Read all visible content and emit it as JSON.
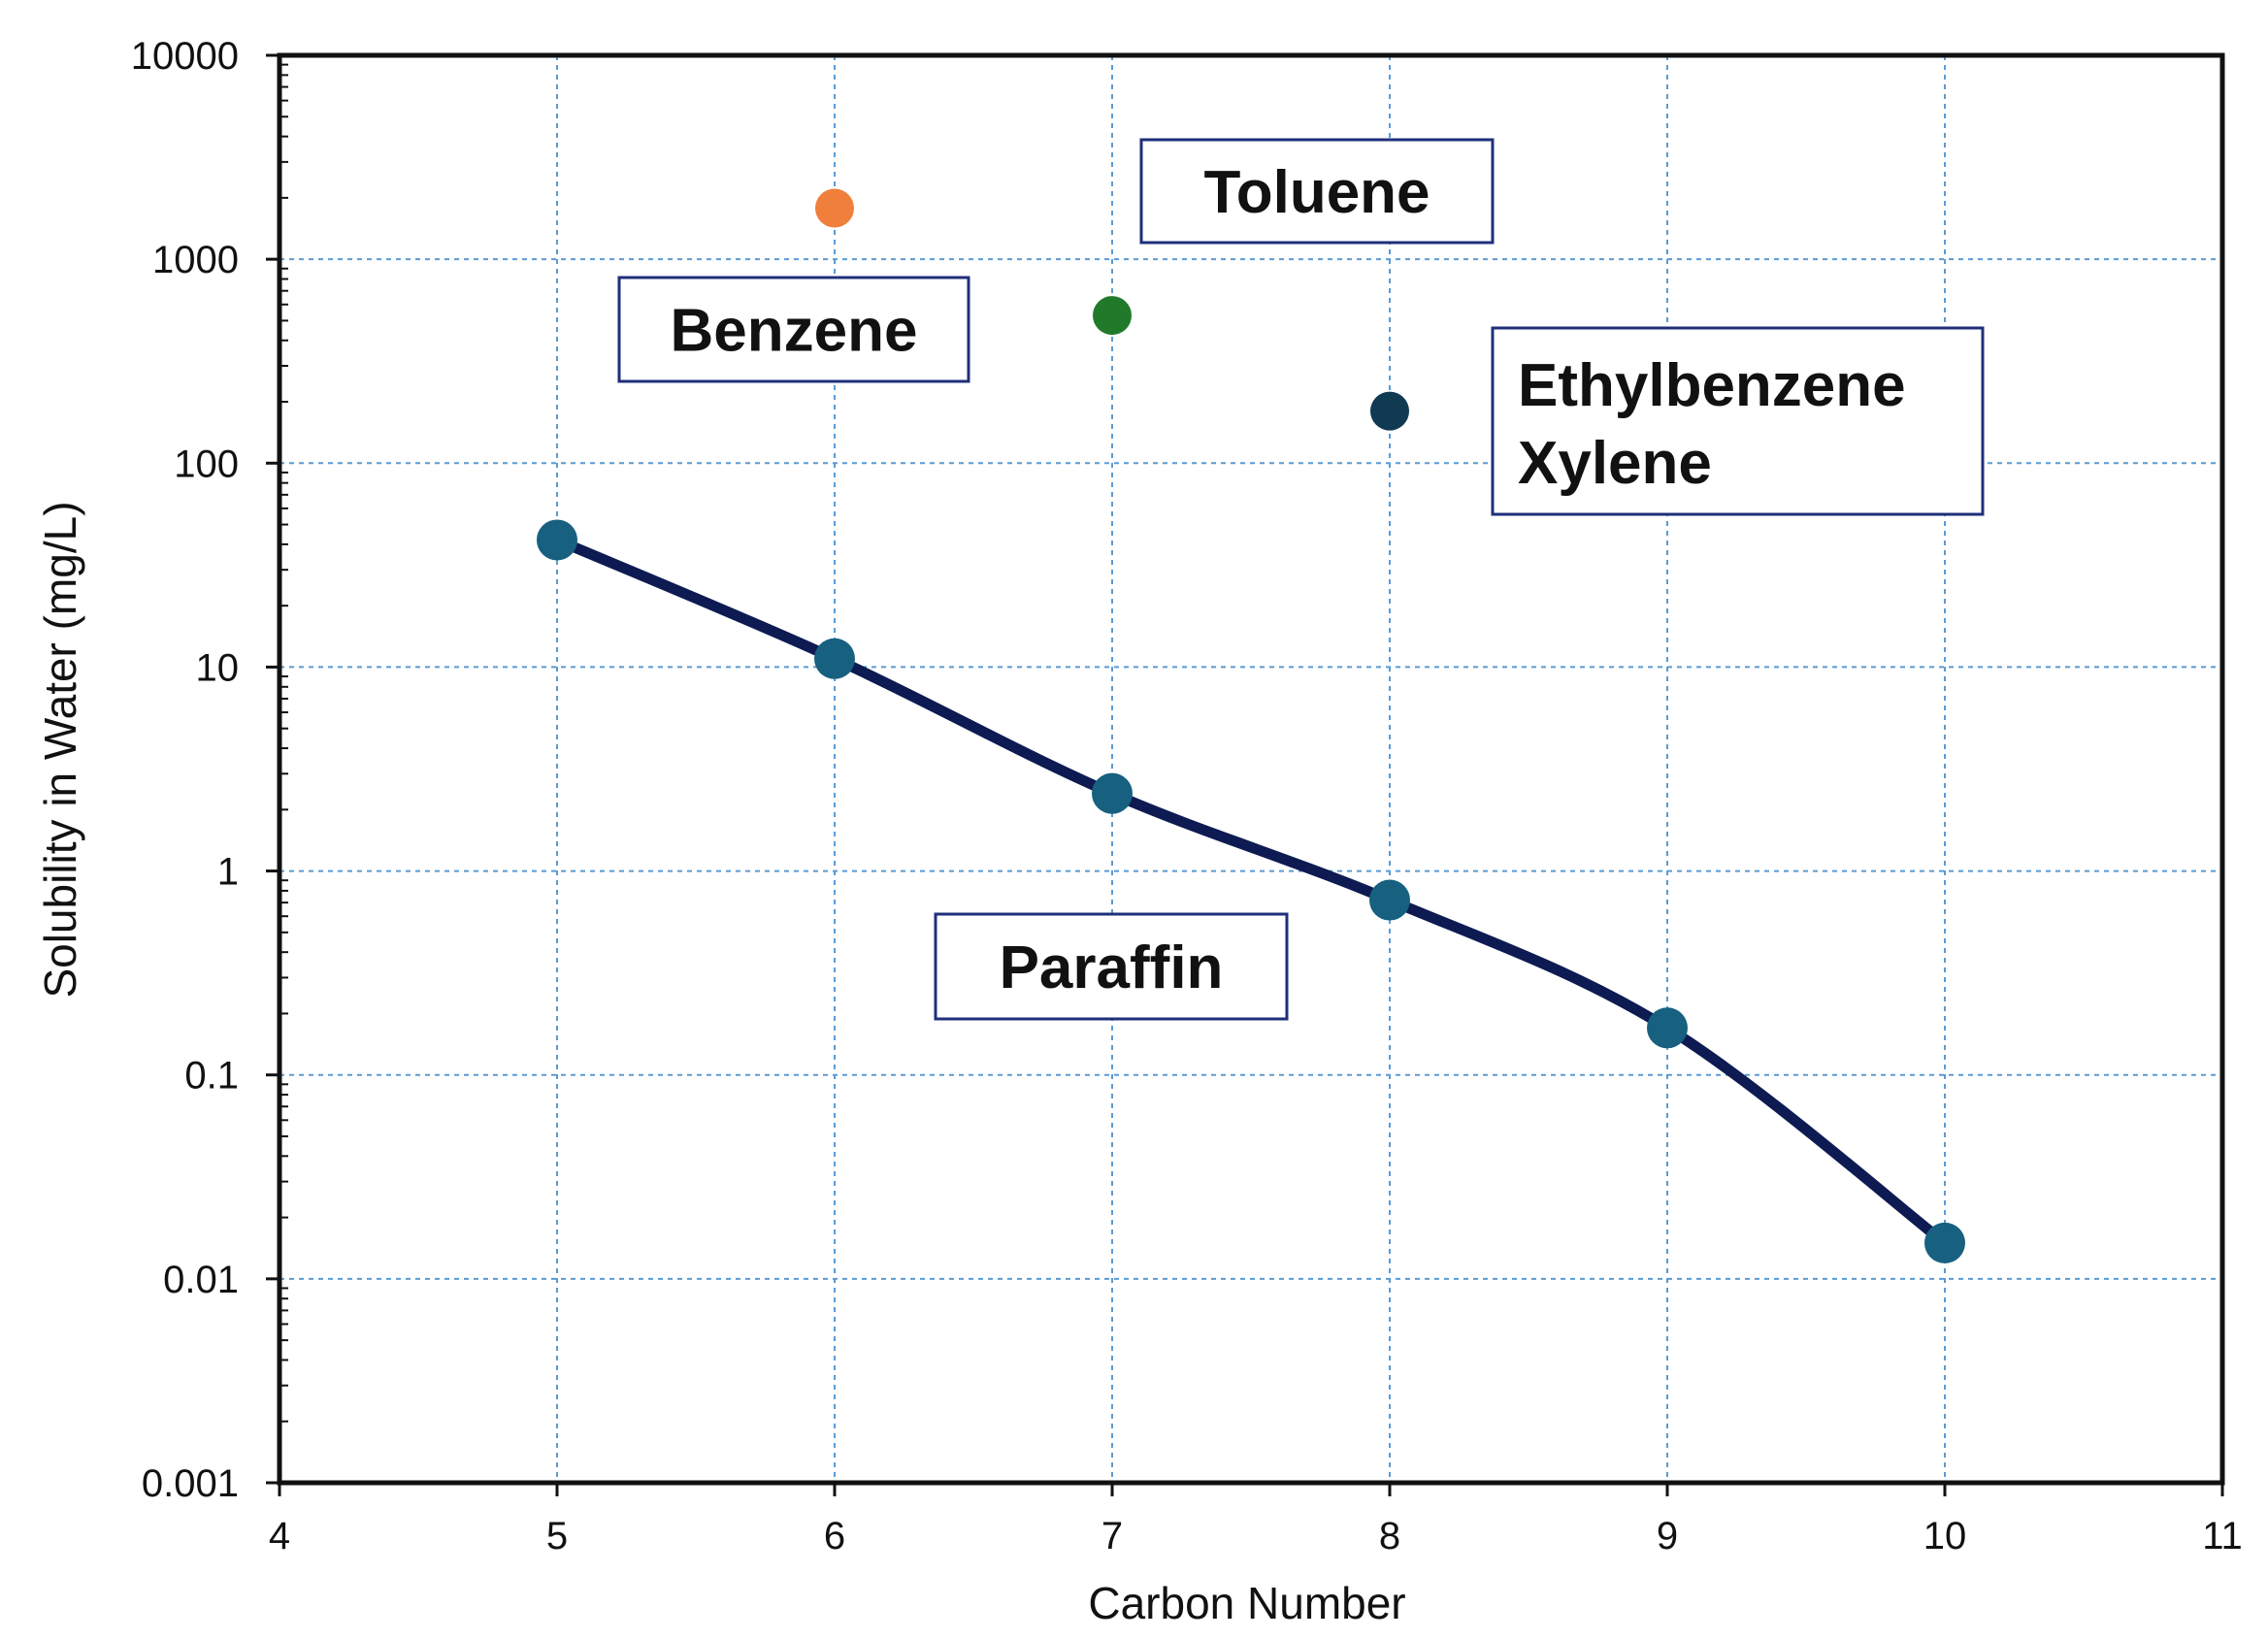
{
  "chart_data": {
    "type": "scatter",
    "xlabel": "Carbon Number",
    "ylabel": "Solubility in Water (mg/L)",
    "xlim": [
      4,
      11
    ],
    "ylim": [
      0.001,
      10000
    ],
    "yscale": "log",
    "grid": true,
    "x_ticks": [
      "4",
      "5",
      "6",
      "7",
      "8",
      "9",
      "10",
      "11"
    ],
    "y_ticks": [
      "0.001",
      "0.01",
      "0.1",
      "1",
      "10",
      "100",
      "1000",
      "10000"
    ],
    "series": [
      {
        "kind": "line+markers",
        "color": "#0d1b52",
        "marker_color": "#17607f",
        "x": [
          5,
          6,
          7,
          8,
          9,
          10
        ],
        "y": [
          42,
          11,
          2.4,
          0.72,
          0.17,
          0.015
        ]
      },
      {
        "kind": "point",
        "color": "#f07f3c",
        "x": [
          6
        ],
        "y": [
          1780
        ]
      },
      {
        "kind": "point",
        "color": "#217a2a",
        "x": [
          7
        ],
        "y": [
          530
        ]
      },
      {
        "kind": "point",
        "color": "#0f3a52",
        "x": [
          8
        ],
        "y": [
          180
        ]
      }
    ],
    "annotations": [
      {
        "lines": [
          "Benzene"
        ]
      },
      {
        "lines": [
          "Toluene"
        ]
      },
      {
        "lines": [
          "Ethylbenzene",
          "Xylene"
        ]
      },
      {
        "lines": [
          "Paraffin"
        ]
      }
    ]
  }
}
